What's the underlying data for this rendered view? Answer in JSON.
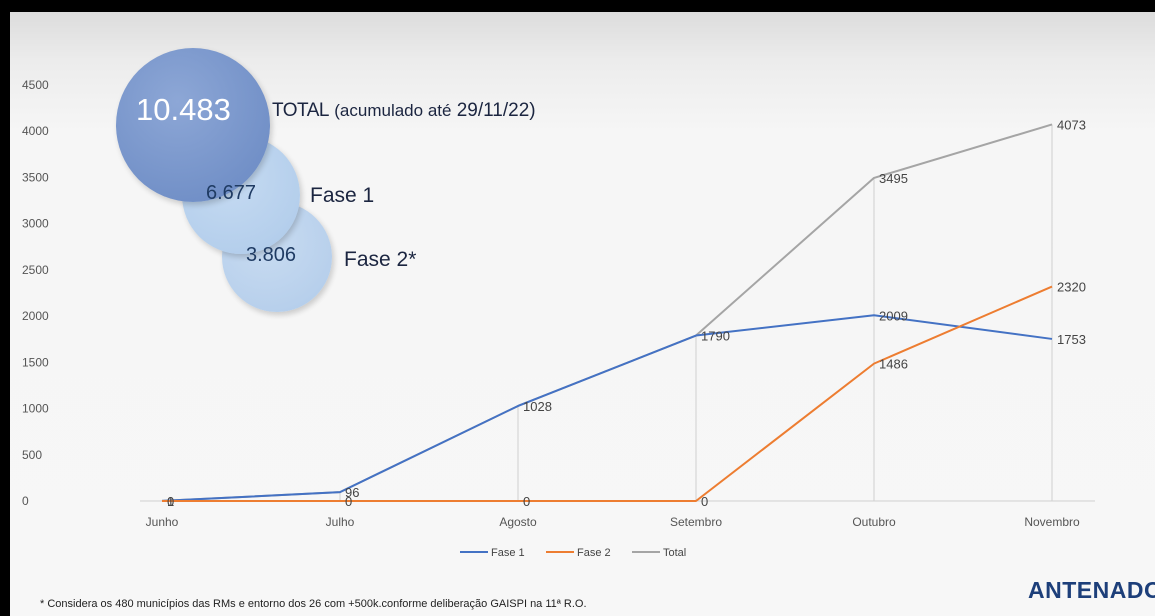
{
  "highlights": {
    "total_value": "10.483",
    "total_label_bold": "TOTAL",
    "total_label_rest": "(acumulado até",
    "total_label_date": "29/11/22)",
    "fase1_value": "6.677",
    "fase1_label": "Fase 1",
    "fase2_value": "3.806",
    "fase2_label": "Fase 2*"
  },
  "footnote": "* Considera os 480 municípios das RMs e entorno dos 26 com +500k.conforme deliberação GAISPI na 11ª R.O.",
  "logo_text": "ANTENADO",
  "chart_data": {
    "type": "line",
    "categories": [
      "Junho",
      "Julho",
      "Agosto",
      "Setembro",
      "Outubro",
      "Novembro"
    ],
    "ylim": [
      0,
      4500
    ],
    "yticks": [
      0,
      500,
      1000,
      1500,
      2000,
      2500,
      3000,
      3500,
      4000,
      4500
    ],
    "grid": false,
    "legend_position": "bottom",
    "series": [
      {
        "name": "Fase 1",
        "color": "#4472c4",
        "values": [
          1,
          96,
          1028,
          1790,
          2009,
          1753
        ],
        "labels": [
          "",
          "",
          "",
          "1790",
          "2009",
          "1753"
        ]
      },
      {
        "name": "Fase 2",
        "color": "#ed7d31",
        "values": [
          0,
          0,
          0,
          0,
          1486,
          2320
        ],
        "labels": [
          "0",
          "0",
          "0",
          "0",
          "1486",
          "2320"
        ]
      },
      {
        "name": "Total",
        "color": "#a5a5a5",
        "values": [
          1,
          96,
          1028,
          1790,
          3495,
          4073
        ],
        "labels": [
          "1",
          "96",
          "1028",
          "",
          "3495",
          "4073"
        ]
      }
    ]
  }
}
